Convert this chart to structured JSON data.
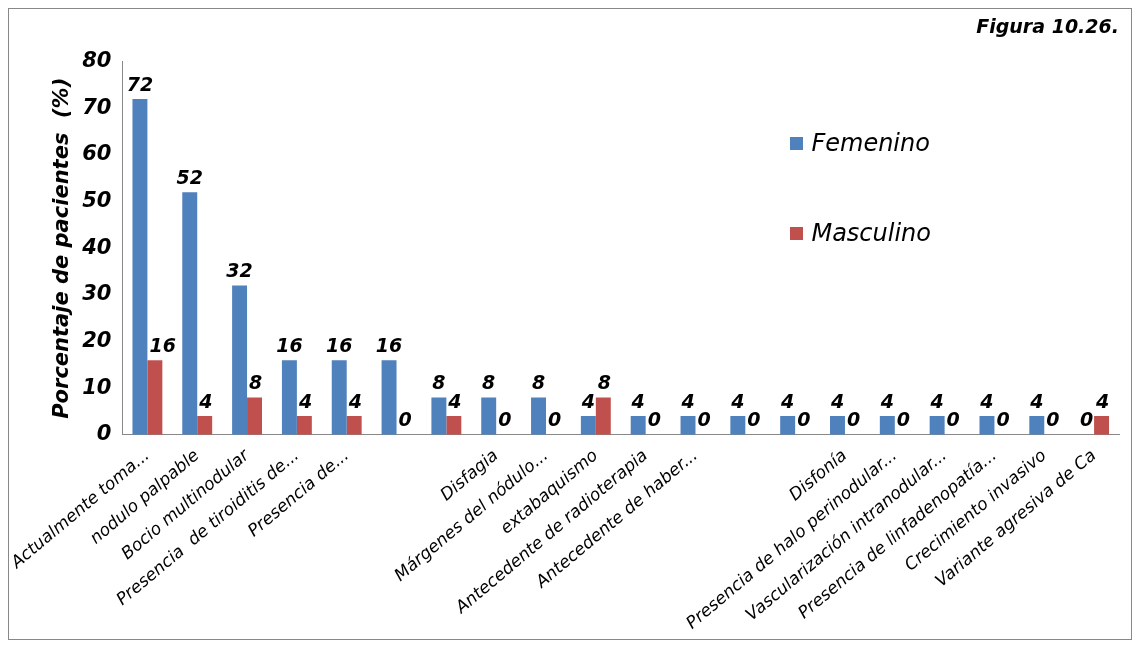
{
  "chart_data": {
    "type": "bar",
    "title": "Figura 10.26.",
    "ylabel": "Porcentaje de pacientes  (%)",
    "categories": [
      "Actualmente toma...",
      "nodulo palpable",
      "Bocio multinodular",
      "Presencia  de tiroiditis de...",
      "Presencia de...",
      null,
      null,
      "Disfagia",
      "Márgenes del nódulo...",
      "extabaquismo",
      "Antecedente de radioterapia",
      "Antecedente de haber...",
      null,
      null,
      "Disfonía",
      "Presencia de halo perinodular...",
      "Vascularización intranodular...",
      "Presencia de linfadenopatía...",
      "Crecimiento invasivo",
      "Variante agresiva de Ca"
    ],
    "series": [
      {
        "name": "Femenino",
        "color": "#4f81bd",
        "values": [
          72,
          52,
          32,
          16,
          16,
          16,
          8,
          8,
          8,
          4,
          4,
          4,
          4,
          4,
          4,
          4,
          4,
          4,
          4,
          0
        ]
      },
      {
        "name": "Masculino",
        "color": "#c0504d",
        "values": [
          16,
          4,
          8,
          4,
          4,
          0,
          4,
          0,
          0,
          8,
          0,
          0,
          0,
          0,
          0,
          0,
          0,
          0,
          0,
          4
        ]
      }
    ],
    "ylim": [
      0,
      80
    ],
    "yticks": [
      0,
      10,
      20,
      30,
      40,
      50,
      60,
      70,
      80
    ],
    "grid": false,
    "legend": "top right",
    "data_labels": true
  }
}
